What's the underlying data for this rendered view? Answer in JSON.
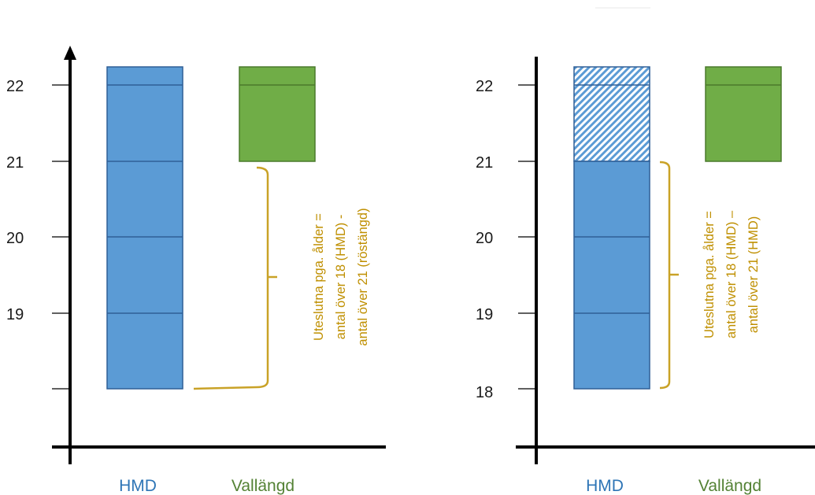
{
  "colors": {
    "hmd": "#5b9bd5",
    "hmd_border": "#2f5f96",
    "vallangd": "#70ad47",
    "vallangd_border": "#4a7a2c",
    "bracket": "#c9a227",
    "annotation_text": "#bf8f00",
    "hmd_label": "#2e75b6",
    "vallangd_label": "#548235",
    "axis": "#000000"
  },
  "left_panel": {
    "y_ticks": [
      "22",
      "21",
      "20",
      "19"
    ],
    "categories": [
      "HMD",
      "Vallängd"
    ],
    "annotation": [
      "Uteslutna pga. ålder =",
      "antal över 18 (HMD) -",
      "antal över 21 (röstängd)"
    ]
  },
  "right_panel": {
    "y_ticks": [
      "22",
      "21",
      "20",
      "19",
      "18"
    ],
    "categories": [
      "HMD",
      "Vallängd"
    ],
    "annotation": [
      "Uteslutna pga. ålder =",
      "antal över 18 (HMD) –",
      "antal över 21 (HMD)"
    ]
  }
}
